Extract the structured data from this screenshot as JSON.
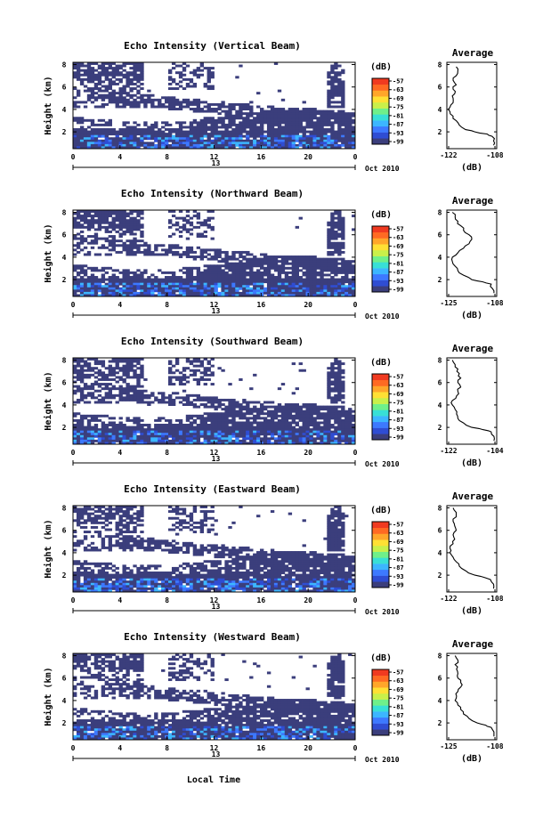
{
  "chart_data": {
    "date_label": "Oct 2010",
    "x_axis_label": "Local Time",
    "x_ticks": [
      "0",
      "4",
      "8",
      "12",
      "16",
      "20",
      "0"
    ],
    "x_day_label": "13",
    "y_axis_label": "Height (km)",
    "y_ticks": [
      "2",
      "4",
      "6",
      "8"
    ],
    "colorbar_unit": "(dB)",
    "colorbar_ticks": [
      "-57",
      "-63",
      "-69",
      "-75",
      "-81",
      "-87",
      "-93",
      "-99"
    ],
    "colorscale": [
      "#3b3e7c",
      "#2f4dd3",
      "#3d79ff",
      "#3cb6ff",
      "#38e0d6",
      "#6ff08a",
      "#c9f04a",
      "#ffe034",
      "#ffa62a",
      "#ff6a23",
      "#f03a20"
    ],
    "panels": [
      {
        "type": "heatmap",
        "title": "Echo Intensity (Vertical Beam)",
        "avg_title": "Average",
        "avg_xlabel": "(dB)",
        "avg_xticks": [
          "-122",
          "-108"
        ],
        "avg_xlim": [
          -122,
          -106
        ],
        "avg_height_km": [
          0.8,
          1.2,
          1.6,
          1.8,
          2.0,
          2.2,
          2.6,
          3.0,
          3.4,
          3.8,
          4.2,
          4.6,
          5.0,
          5.4,
          5.8,
          6.2,
          6.6,
          7.0,
          7.4,
          7.8
        ],
        "avg_db": [
          -107,
          -107,
          -107.5,
          -109,
          -113,
          -116,
          -118,
          -119,
          -120,
          -121,
          -121,
          -120,
          -120,
          -119.5,
          -120,
          -119,
          -120,
          -119,
          -118.5,
          -119
        ]
      },
      {
        "type": "heatmap",
        "title": "Echo Intensity (Northward Beam)",
        "avg_title": "Average",
        "avg_xlabel": "(dB)",
        "avg_xticks": [
          "-125",
          "-108"
        ],
        "avg_xlim": [
          -125,
          -107
        ],
        "avg_height_km": [
          0.8,
          1.2,
          1.6,
          1.8,
          2.0,
          2.4,
          2.8,
          3.2,
          3.6,
          4.0,
          4.4,
          4.8,
          5.2,
          5.6,
          6.0,
          6.4,
          6.8,
          7.2,
          7.6,
          8.0
        ],
        "avg_db": [
          -108,
          -108.5,
          -109,
          -112,
          -116,
          -119,
          -121,
          -122,
          -123,
          -123,
          -121,
          -119,
          -117,
          -116,
          -117,
          -119,
          -120,
          -121,
          -122,
          -123
        ]
      },
      {
        "type": "heatmap",
        "title": "Echo Intensity (Southward Beam)",
        "avg_title": "Average",
        "avg_xlabel": "(dB)",
        "avg_xticks": [
          "-122",
          "-104"
        ],
        "avg_xlim": [
          -122,
          -104
        ],
        "avg_height_km": [
          0.8,
          1.2,
          1.6,
          1.8,
          2.0,
          2.4,
          2.8,
          3.2,
          3.6,
          4.0,
          4.4,
          4.8,
          5.2,
          5.6,
          6.0,
          6.4,
          6.8,
          7.2,
          7.6,
          8.0
        ],
        "avg_db": [
          -105,
          -105,
          -106,
          -109,
          -113,
          -116,
          -118,
          -118.5,
          -119,
          -120,
          -120,
          -118.5,
          -118,
          -117,
          -118,
          -117,
          -117.5,
          -118,
          -119,
          -120
        ]
      },
      {
        "type": "heatmap",
        "title": "Echo Intensity (Eastward Beam)",
        "avg_title": "Average",
        "avg_xlabel": "(dB)",
        "avg_xticks": [
          "-122",
          "-108"
        ],
        "avg_xlim": [
          -122,
          -106
        ],
        "avg_height_km": [
          0.8,
          1.2,
          1.6,
          1.8,
          2.0,
          2.4,
          2.8,
          3.2,
          3.6,
          4.0,
          4.4,
          4.8,
          5.2,
          5.6,
          6.0,
          6.4,
          6.8,
          7.2,
          7.6,
          8.0
        ],
        "avg_db": [
          -107,
          -107,
          -108,
          -110,
          -113,
          -116,
          -118,
          -119,
          -120,
          -121,
          -121,
          -120,
          -119.5,
          -120,
          -119,
          -119.5,
          -120,
          -119,
          -119,
          -120
        ]
      },
      {
        "type": "heatmap",
        "title": "Echo Intensity (Westward Beam)",
        "avg_title": "Average",
        "avg_xlabel": "(dB)",
        "avg_xticks": [
          "-125",
          "-108"
        ],
        "avg_xlim": [
          -125,
          -107
        ],
        "avg_height_km": [
          0.8,
          1.2,
          1.6,
          1.8,
          2.0,
          2.4,
          2.8,
          3.2,
          3.6,
          4.0,
          4.4,
          4.8,
          5.2,
          5.6,
          6.0,
          6.4,
          6.8,
          7.2,
          7.6,
          8.0
        ],
        "avg_db": [
          -108,
          -108,
          -109,
          -111,
          -114,
          -117,
          -119,
          -120,
          -121,
          -122,
          -121.5,
          -121,
          -120,
          -120,
          -121,
          -121,
          -121.5,
          -122,
          -121,
          -122
        ]
      }
    ]
  }
}
